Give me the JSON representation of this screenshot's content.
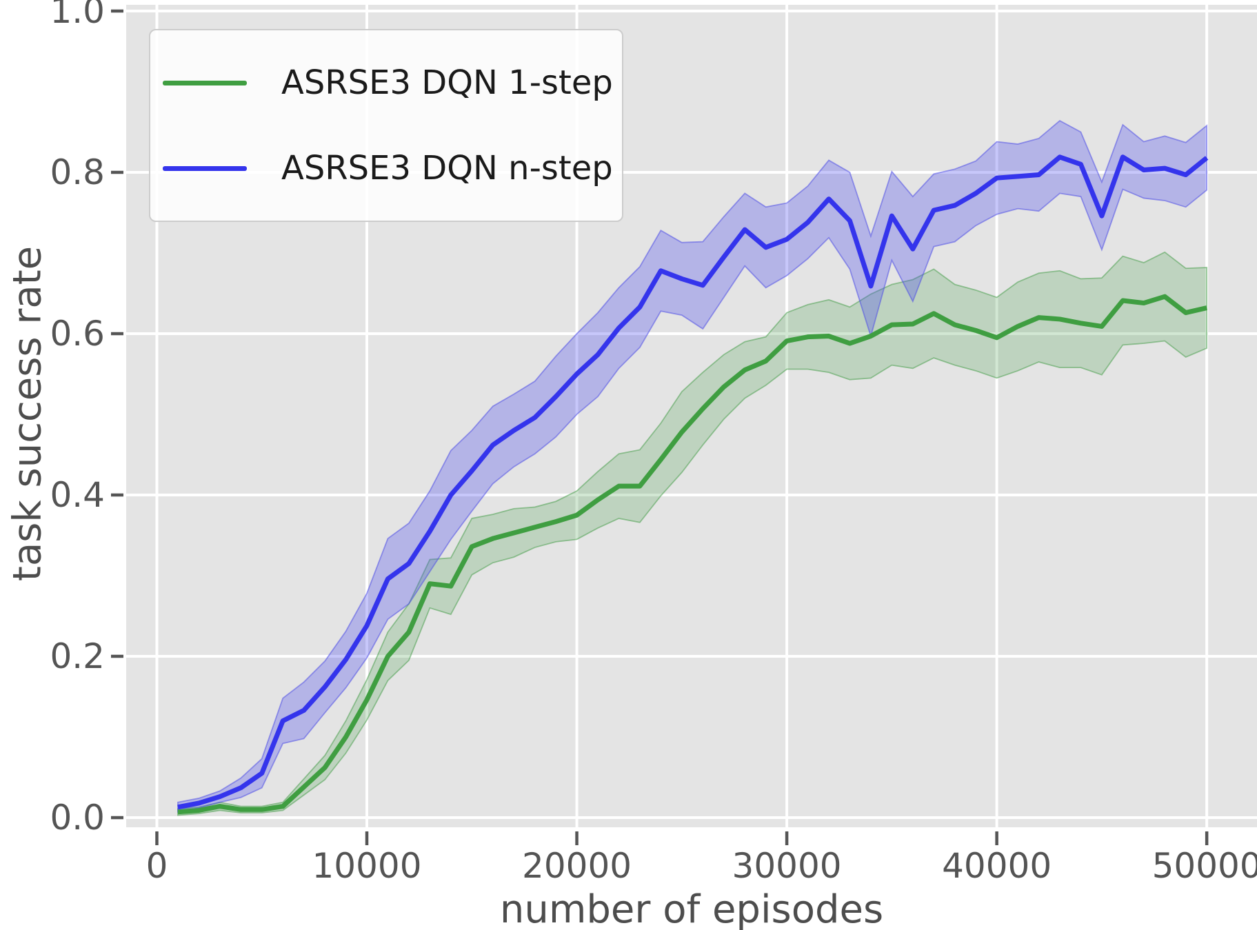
{
  "axes": {
    "x": {
      "label": "number of episodes",
      "ticks": [
        {
          "value": 0,
          "label": "0"
        },
        {
          "value": 10000,
          "label": "10000"
        },
        {
          "value": 20000,
          "label": "20000"
        },
        {
          "value": 30000,
          "label": "30000"
        },
        {
          "value": 40000,
          "label": "40000"
        },
        {
          "value": 50000,
          "label": "50000"
        }
      ]
    },
    "y": {
      "label": "task success rate",
      "ticks": [
        {
          "value": 0.0,
          "label": "0.0"
        },
        {
          "value": 0.2,
          "label": "0.2"
        },
        {
          "value": 0.4,
          "label": "0.4"
        },
        {
          "value": 0.6,
          "label": "0.6"
        },
        {
          "value": 0.8,
          "label": "0.8"
        },
        {
          "value": 1.0,
          "label": "1.0"
        }
      ]
    }
  },
  "legend": {
    "entries": [
      {
        "label": "ASRSE3 DQN 1-step",
        "color": "#3f9e41"
      },
      {
        "label": "ASRSE3 DQN n-step",
        "color": "#3434ec"
      }
    ]
  },
  "style": {
    "plot_bg": "#e4e4e4",
    "grid_color": "#ffffff",
    "tick_color": "#555555",
    "tick_label_color": "#545454",
    "axis_label_color": "#4d4d4d"
  },
  "chart_data": {
    "type": "line",
    "title": "",
    "xlabel": "number of episodes",
    "ylabel": "task success rate",
    "xlim": [
      -1500,
      52400
    ],
    "ylim": [
      -0.012,
      1.008
    ],
    "grid": true,
    "legend_position": "upper left",
    "x": [
      1000,
      2000,
      3000,
      4000,
      5000,
      6000,
      7000,
      8000,
      9000,
      10000,
      11000,
      12000,
      13000,
      14000,
      15000,
      16000,
      17000,
      18000,
      19000,
      20000,
      21000,
      22000,
      23000,
      24000,
      25000,
      26000,
      27000,
      28000,
      29000,
      30000,
      31000,
      32000,
      33000,
      34000,
      35000,
      36000,
      37000,
      38000,
      39000,
      40000,
      41000,
      42000,
      43000,
      44000,
      45000,
      46000,
      47000,
      48000,
      49000,
      50000
    ],
    "series": [
      {
        "name": "ASRSE3 DQN 1-step",
        "color": "#3f9e41",
        "band_fill": "rgba(77,160,80,0.25)",
        "band_edge": "rgba(77,160,80,0.55)",
        "values": [
          0.007,
          0.009,
          0.014,
          0.01,
          0.01,
          0.014,
          0.038,
          0.062,
          0.1,
          0.146,
          0.2,
          0.23,
          0.29,
          0.287,
          0.336,
          0.346,
          0.353,
          0.36,
          0.367,
          0.375,
          0.394,
          0.411,
          0.411,
          0.444,
          0.478,
          0.507,
          0.534,
          0.555,
          0.566,
          0.591,
          0.596,
          0.597,
          0.588,
          0.597,
          0.611,
          0.612,
          0.625,
          0.611,
          0.604,
          0.595,
          0.609,
          0.62,
          0.618,
          0.613,
          0.609,
          0.641,
          0.638,
          0.646,
          0.626,
          0.632
        ],
        "band_lower": [
          0.003,
          0.005,
          0.009,
          0.006,
          0.006,
          0.009,
          0.028,
          0.047,
          0.08,
          0.121,
          0.17,
          0.195,
          0.26,
          0.252,
          0.301,
          0.316,
          0.323,
          0.335,
          0.342,
          0.345,
          0.359,
          0.371,
          0.366,
          0.399,
          0.428,
          0.462,
          0.494,
          0.52,
          0.536,
          0.556,
          0.556,
          0.552,
          0.543,
          0.545,
          0.561,
          0.557,
          0.57,
          0.561,
          0.554,
          0.545,
          0.554,
          0.565,
          0.558,
          0.558,
          0.549,
          0.586,
          0.588,
          0.591,
          0.571,
          0.582
        ],
        "band_upper": [
          0.011,
          0.013,
          0.019,
          0.014,
          0.014,
          0.019,
          0.048,
          0.077,
          0.12,
          0.171,
          0.23,
          0.265,
          0.32,
          0.322,
          0.371,
          0.376,
          0.383,
          0.385,
          0.392,
          0.405,
          0.429,
          0.451,
          0.456,
          0.489,
          0.528,
          0.552,
          0.574,
          0.59,
          0.596,
          0.626,
          0.636,
          0.642,
          0.633,
          0.649,
          0.661,
          0.667,
          0.68,
          0.661,
          0.654,
          0.645,
          0.664,
          0.675,
          0.678,
          0.668,
          0.669,
          0.696,
          0.688,
          0.701,
          0.681,
          0.682
        ]
      },
      {
        "name": "ASRSE3 DQN n-step",
        "color": "#3434ec",
        "band_fill": "rgba(70,70,240,0.30)",
        "band_edge": "rgba(80,80,230,0.55)",
        "values": [
          0.013,
          0.018,
          0.026,
          0.037,
          0.055,
          0.12,
          0.133,
          0.162,
          0.196,
          0.238,
          0.296,
          0.315,
          0.355,
          0.4,
          0.43,
          0.462,
          0.48,
          0.496,
          0.522,
          0.55,
          0.574,
          0.607,
          0.633,
          0.678,
          0.668,
          0.66,
          0.695,
          0.729,
          0.707,
          0.717,
          0.738,
          0.767,
          0.74,
          0.659,
          0.746,
          0.705,
          0.753,
          0.759,
          0.774,
          0.793,
          0.795,
          0.797,
          0.819,
          0.81,
          0.746,
          0.819,
          0.803,
          0.805,
          0.797,
          0.818
        ],
        "band_lower": [
          0.007,
          0.012,
          0.019,
          0.025,
          0.037,
          0.092,
          0.098,
          0.13,
          0.161,
          0.198,
          0.246,
          0.265,
          0.305,
          0.345,
          0.38,
          0.414,
          0.435,
          0.451,
          0.472,
          0.5,
          0.522,
          0.557,
          0.583,
          0.628,
          0.623,
          0.606,
          0.645,
          0.684,
          0.657,
          0.672,
          0.693,
          0.719,
          0.68,
          0.597,
          0.691,
          0.64,
          0.708,
          0.714,
          0.734,
          0.748,
          0.755,
          0.752,
          0.774,
          0.77,
          0.704,
          0.779,
          0.768,
          0.765,
          0.757,
          0.778
        ],
        "band_upper": [
          0.019,
          0.024,
          0.033,
          0.049,
          0.073,
          0.148,
          0.168,
          0.194,
          0.231,
          0.278,
          0.346,
          0.365,
          0.405,
          0.455,
          0.48,
          0.51,
          0.525,
          0.541,
          0.572,
          0.6,
          0.626,
          0.657,
          0.683,
          0.728,
          0.713,
          0.714,
          0.745,
          0.774,
          0.757,
          0.762,
          0.783,
          0.815,
          0.8,
          0.721,
          0.801,
          0.77,
          0.798,
          0.804,
          0.814,
          0.838,
          0.835,
          0.842,
          0.864,
          0.85,
          0.788,
          0.859,
          0.838,
          0.845,
          0.837,
          0.858
        ]
      }
    ]
  }
}
